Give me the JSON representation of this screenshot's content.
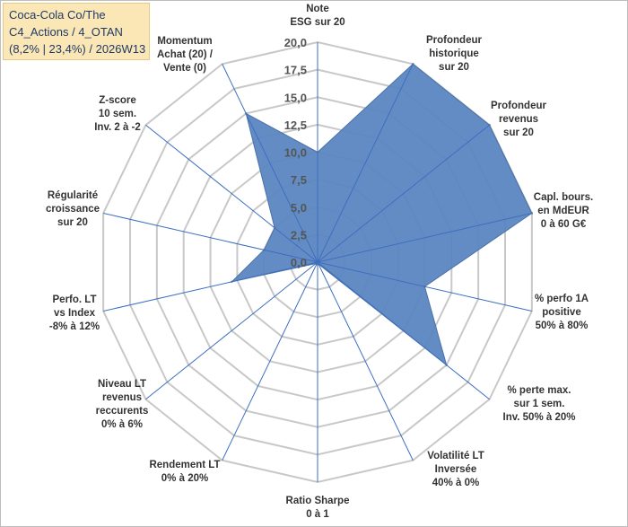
{
  "infobox": {
    "line1": "Coca-Cola Co/The",
    "line2": "C4_Actions / 4_OTAN",
    "line3": "(8,2% | 23,4%) / 2026W13"
  },
  "chart_data": {
    "type": "radar",
    "rmin": 0,
    "rmax": 20,
    "tick_step": 2.5,
    "tick_labels": [
      "0,0",
      "2,5",
      "5,0",
      "7,5",
      "10,0",
      "12,5",
      "15,0",
      "17,5",
      "20,0"
    ],
    "series_color": "#5b86c1",
    "series_edge": "#4a72a8",
    "grid_color": "#c8c8c8",
    "spoke_color": "#3d6fc0",
    "axes": [
      {
        "label": [
          "Note",
          "ESG sur 20"
        ],
        "value": 10.0
      },
      {
        "label": [
          "Profondeur",
          "historique",
          "sur 20"
        ],
        "value": 20.0
      },
      {
        "label": [
          "Profondeur",
          "revenus",
          "sur 20"
        ],
        "value": 20.0
      },
      {
        "label": [
          "Capl. bours.",
          "en MdEUR",
          "0 à 60 G€"
        ],
        "value": 20.0
      },
      {
        "label": [
          "% perfo 1A",
          "positive",
          "50% à 80%"
        ],
        "value": 10.0
      },
      {
        "label": [
          "% perte max.",
          "sur 1 sem.",
          "Inv. 50% à 20%"
        ],
        "value": 15.0
      },
      {
        "label": [
          "Volatilité LT",
          "Inversée",
          "40% à 0%"
        ],
        "value": 0.2
      },
      {
        "label": [
          "Ratio Sharpe",
          "0 à 1"
        ],
        "value": 0.2
      },
      {
        "label": [
          "Rendement LT",
          "0% à 20%"
        ],
        "value": 0.2
      },
      {
        "label": [
          "Niveau LT",
          "revenus",
          "reccurents",
          "0% à 6%"
        ],
        "value": 0.2
      },
      {
        "label": [
          "Perfo. LT",
          "vs Index",
          "-8% à 12%"
        ],
        "value": 8.0
      },
      {
        "label": [
          "Régularité",
          "croissance",
          "sur 20"
        ],
        "value": 5.0
      },
      {
        "label": [
          "Z-score",
          "10 sem.",
          "Inv. 2 à -2"
        ],
        "value": 5.0
      },
      {
        "label": [
          "Momentum",
          "Achat (20) /",
          "Vente (0)"
        ],
        "value": 15.0
      }
    ]
  }
}
